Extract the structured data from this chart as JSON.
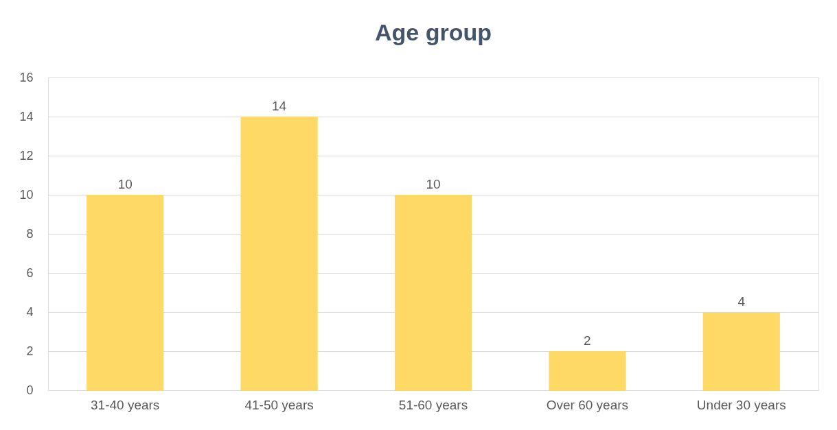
{
  "chart_data": {
    "type": "bar",
    "title": "Age group",
    "categories": [
      "31-40 years",
      "41-50 years",
      "51-60 years",
      "Over 60 years",
      "Under 30 years"
    ],
    "values": [
      10,
      14,
      10,
      2,
      4
    ],
    "color": "#ffd966",
    "ylim": [
      0,
      16
    ],
    "yticks": [
      0,
      2,
      4,
      6,
      8,
      10,
      12,
      14,
      16
    ],
    "grid": "y",
    "data_labels": true
  }
}
